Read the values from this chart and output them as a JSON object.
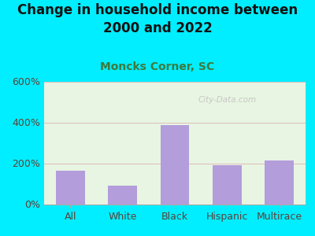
{
  "title": "Change in household income between\n2000 and 2022",
  "subtitle": "Moncks Corner, SC",
  "categories": [
    "All",
    "White",
    "Black",
    "Hispanic",
    "Multirace"
  ],
  "values": [
    165,
    90,
    385,
    190,
    215
  ],
  "bar_color": "#b39ddb",
  "background_outer": "#00eeff",
  "background_inner": "#e8f5e2",
  "title_color": "#111111",
  "subtitle_color": "#3d7a3d",
  "tick_label_color": "#5d4037",
  "ylim": [
    0,
    600
  ],
  "yticks": [
    0,
    200,
    400,
    600
  ],
  "ytick_labels": [
    "0%",
    "200%",
    "400%",
    "600%"
  ],
  "grid_color": "#ddbbbb",
  "watermark": "City-Data.com",
  "title_fontsize": 12,
  "subtitle_fontsize": 10
}
